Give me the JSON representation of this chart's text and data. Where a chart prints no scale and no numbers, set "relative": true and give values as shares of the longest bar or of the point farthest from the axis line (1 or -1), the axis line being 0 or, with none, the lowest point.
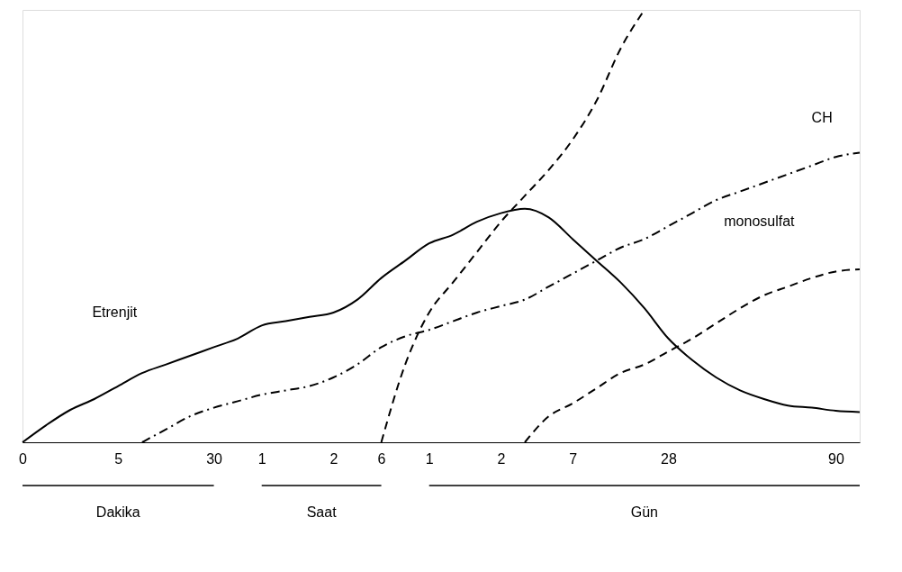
{
  "chart_data": {
    "type": "line",
    "relative": true,
    "grid": false,
    "categories": [
      "0",
      null,
      null,
      null,
      "5",
      null,
      null,
      null,
      "30",
      null,
      "1",
      null,
      null,
      "2",
      null,
      "6",
      null,
      "1",
      null,
      null,
      "2",
      null,
      null,
      "7",
      null,
      null,
      null,
      "28",
      null,
      null,
      null,
      null,
      null,
      null,
      "90",
      null
    ],
    "series": [
      {
        "color": "#000000",
        "line_style": "solid",
        "values": [
          0,
          0.04,
          0.075,
          0.1,
          0.13,
          0.16,
          0.18,
          0.2,
          0.22,
          0.24,
          0.27,
          0.28,
          0.29,
          0.3,
          0.33,
          0.38,
          0.42,
          0.46,
          0.48,
          0.51,
          0.53,
          0.54,
          0.52,
          0.47,
          0.42,
          0.37,
          0.31,
          0.24,
          0.19,
          0.15,
          0.12,
          0.1,
          0.085,
          0.08,
          0.073,
          0.07
        ]
      },
      {
        "color": "#000000",
        "line_style": "dashdot",
        "values": [
          null,
          null,
          null,
          null,
          null,
          0,
          0.03,
          0.06,
          0.08,
          0.095,
          0.11,
          0.12,
          0.13,
          0.15,
          0.18,
          0.22,
          0.245,
          0.26,
          0.28,
          0.3,
          0.315,
          0.33,
          0.36,
          0.39,
          0.42,
          0.45,
          0.47,
          0.5,
          0.53,
          0.56,
          0.58,
          0.6,
          0.62,
          0.64,
          0.66,
          0.67
        ]
      },
      {
        "color": "#000000",
        "line_style": "dashed",
        "values": [
          null,
          null,
          null,
          null,
          null,
          null,
          null,
          null,
          null,
          null,
          null,
          null,
          null,
          null,
          null,
          0,
          0.18,
          0.3,
          0.37,
          0.44,
          0.51,
          0.57,
          0.63,
          0.7,
          0.79,
          0.91,
          1.0,
          null,
          null,
          null,
          null,
          null,
          null,
          null,
          null,
          null
        ]
      },
      {
        "color": "#000000",
        "line_style": "dashed",
        "values": [
          null,
          null,
          null,
          null,
          null,
          null,
          null,
          null,
          null,
          null,
          null,
          null,
          null,
          null,
          null,
          null,
          null,
          null,
          null,
          null,
          null,
          0,
          0.06,
          0.09,
          0.125,
          0.16,
          0.18,
          0.21,
          0.24,
          0.275,
          0.31,
          0.34,
          0.36,
          0.38,
          0.395,
          0.4
        ]
      }
    ],
    "annotations": [
      "Etrenjit",
      "CH",
      "monosulfat",
      "Dakika",
      "Saat",
      "Gün"
    ]
  }
}
